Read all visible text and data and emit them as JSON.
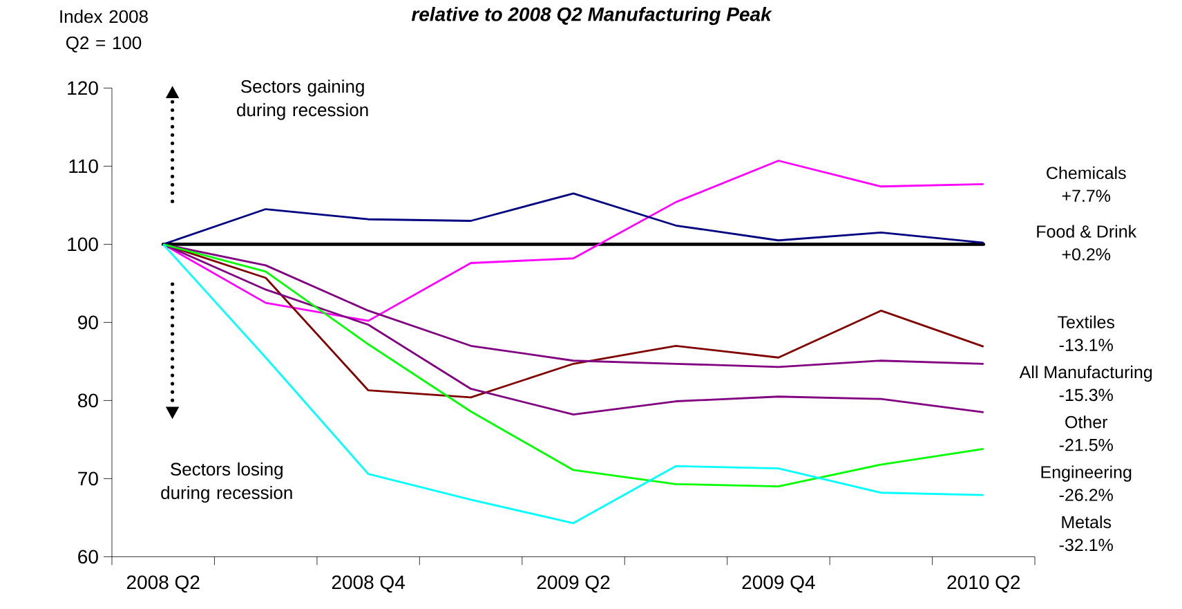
{
  "chart_data": {
    "type": "line",
    "title": "relative to 2008 Q2 Manufacturing Peak",
    "ylabel": "Index 2008 Q2 = 100",
    "categories": [
      "2008 Q2",
      null,
      "2008 Q4",
      null,
      "2009 Q2",
      null,
      "2009 Q4",
      null,
      "2010 Q2"
    ],
    "ylim": [
      60,
      120
    ],
    "yticks": [
      60,
      70,
      80,
      90,
      100,
      110,
      120
    ],
    "series": [
      {
        "name": "Chemicals",
        "color": "#ff00ff",
        "values": [
          100,
          92.5,
          90.2,
          97.6,
          98.2,
          105.4,
          110.7,
          107.4,
          107.7
        ]
      },
      {
        "name": "Food & Drink",
        "color": "#000080",
        "values": [
          100,
          104.5,
          103.2,
          103.0,
          106.5,
          102.4,
          100.5,
          101.5,
          100.2
        ]
      },
      {
        "name": "Textiles",
        "color": "#800000",
        "values": [
          100,
          95.7,
          81.3,
          80.4,
          84.7,
          87.0,
          85.5,
          91.5,
          86.9
        ]
      },
      {
        "name": "All Manufacturing",
        "color": "#800080",
        "values": [
          100,
          97.3,
          91.5,
          87.0,
          85.1,
          84.7,
          84.3,
          85.1,
          84.7
        ]
      },
      {
        "name": "Other",
        "color": "#800080",
        "values": [
          100,
          94.2,
          89.7,
          81.5,
          78.2,
          79.9,
          80.5,
          80.2,
          78.5
        ]
      },
      {
        "name": "Engineering",
        "color": "#00ff00",
        "values": [
          100,
          96.5,
          87.2,
          78.6,
          71.1,
          69.3,
          69.0,
          71.8,
          73.8
        ]
      },
      {
        "name": "Metals",
        "color": "#00ffff",
        "values": [
          100,
          85.5,
          70.6,
          67.3,
          64.3,
          71.6,
          71.3,
          68.2,
          67.9
        ]
      }
    ],
    "ref_lines": [
      {
        "axis": "y",
        "value": 100,
        "color": "#000000"
      }
    ],
    "annotations": [
      "Sectors gaining during recession",
      "Sectors losing during recession",
      "+7.7%",
      "+0.2%",
      "-13.1%",
      "-15.3%",
      "-21.5%",
      "-26.2%",
      "-32.1%"
    ]
  }
}
